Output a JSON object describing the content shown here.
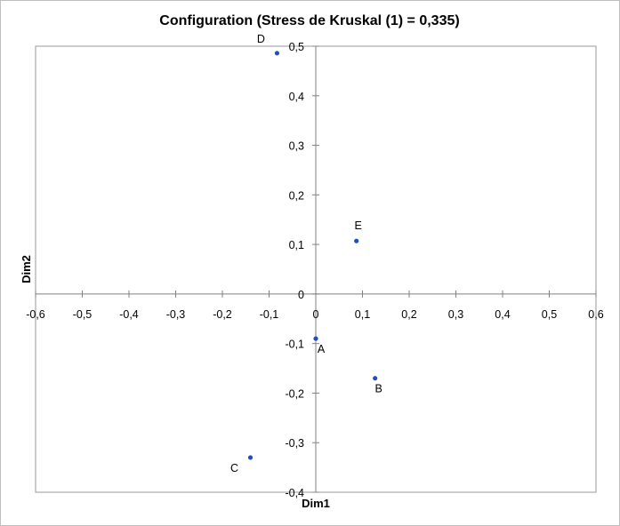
{
  "chart_data": {
    "type": "scatter",
    "title": "Configuration (Stress de Kruskal (1) = 0,335)",
    "xlabel": "Dim1",
    "ylabel": "Dim2",
    "xlim": [
      -0.6,
      0.6
    ],
    "ylim": [
      -0.4,
      0.5
    ],
    "x_ticks": [
      "-0,6",
      "-0,5",
      "-0,4",
      "-0,3",
      "-0,2",
      "-0,1",
      "0",
      "0,1",
      "0,2",
      "0,3",
      "0,4",
      "0,5",
      "0,6"
    ],
    "y_ticks": [
      "-0,4",
      "-0,3",
      "-0,2",
      "-0,1",
      "0",
      "0,1",
      "0,2",
      "0,3",
      "0,4",
      "0,5"
    ],
    "grid": false,
    "legend": "none",
    "marker_color": "#1f4fbf",
    "points": [
      {
        "label": "A",
        "x": 0.0,
        "y": -0.09
      },
      {
        "label": "B",
        "x": 0.127,
        "y": -0.17
      },
      {
        "label": "C",
        "x": -0.14,
        "y": -0.33
      },
      {
        "label": "D",
        "x": -0.083,
        "y": 0.486
      },
      {
        "label": "E",
        "x": 0.087,
        "y": 0.107
      }
    ]
  }
}
